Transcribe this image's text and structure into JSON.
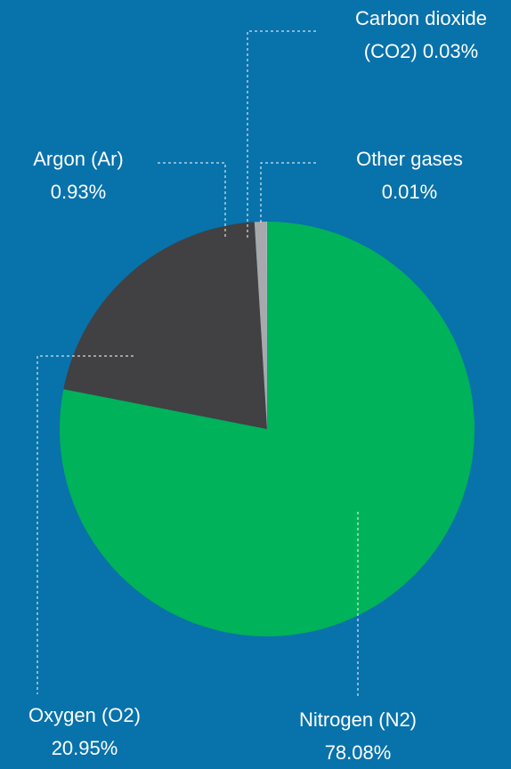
{
  "chart_data": {
    "type": "pie",
    "categories": [
      "Nitrogen (N2)",
      "Oxygen (O2)",
      "Argon (Ar)",
      "Carbon dioxide (CO2)",
      "Other gases"
    ],
    "values": [
      78.08,
      20.95,
      0.93,
      0.03,
      0.01
    ],
    "value_labels": [
      "78.08%",
      "20.95%",
      "0.93%",
      "0.03%",
      "0.01%"
    ],
    "colors": [
      "#00b259",
      "#414042",
      "#a7a9ac",
      "#d1d3d4",
      "#ffffff"
    ]
  }
}
